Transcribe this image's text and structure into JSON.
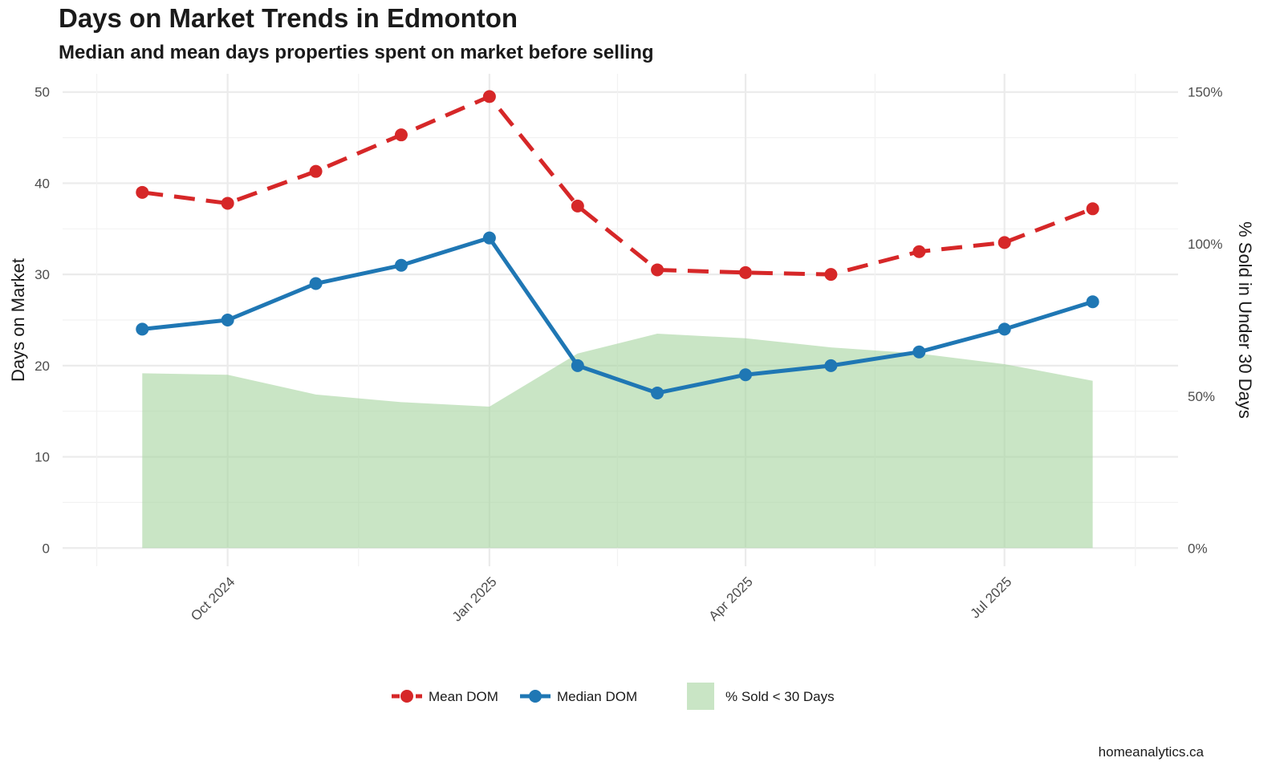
{
  "chart_data": {
    "type": "line",
    "title": "Days on Market Trends in Edmonton",
    "subtitle": "Median and mean days properties spent on market before selling",
    "caption": "homeanalytics.ca",
    "x": [
      "2024-09-01",
      "2024-10-01",
      "2024-11-01",
      "2024-12-01",
      "2025-01-01",
      "2025-02-01",
      "2025-03-01",
      "2025-04-01",
      "2025-05-01",
      "2025-06-01",
      "2025-07-01",
      "2025-08-01"
    ],
    "x_ticks": [
      {
        "date": "2024-10-01",
        "label": "Oct 2024"
      },
      {
        "date": "2025-01-01",
        "label": "Jan 2025"
      },
      {
        "date": "2025-04-01",
        "label": "Apr 2025"
      },
      {
        "date": "2025-07-01",
        "label": "Jul 2025"
      }
    ],
    "xlim": [
      "2024-08-04",
      "2025-08-31"
    ],
    "ylabel": "Days on Market",
    "ylim": [
      -2,
      52
    ],
    "y_ticks": [
      0,
      10,
      20,
      30,
      40,
      50
    ],
    "y2label": "% Sold in Under 30 Days",
    "y2lim": [
      -6,
      156
    ],
    "y2_ticks": [
      {
        "value": 0,
        "label": "0%"
      },
      {
        "value": 50,
        "label": "50%"
      },
      {
        "value": 100,
        "label": "100%"
      },
      {
        "value": 150,
        "label": "150%"
      }
    ],
    "grid": true,
    "legend_position": "bottom",
    "series": [
      {
        "name": "Mean DOM",
        "axis": "left",
        "style": "dashed-line-points",
        "color": "#d62728",
        "values": [
          39.0,
          37.8,
          41.3,
          45.3,
          49.5,
          37.5,
          30.5,
          30.2,
          30.0,
          32.5,
          33.5,
          37.2
        ]
      },
      {
        "name": "Median DOM",
        "axis": "left",
        "style": "line-points",
        "color": "#1f77b4",
        "values": [
          24,
          25,
          29,
          31,
          34,
          20,
          17,
          19,
          20,
          21.5,
          24,
          27
        ]
      },
      {
        "name": "% Sold < 30 Days",
        "axis": "right",
        "style": "area",
        "color": "#a8d5a2",
        "values": [
          57.5,
          57,
          50.5,
          48,
          46.5,
          64,
          70.5,
          69,
          66,
          64,
          60.5,
          55
        ]
      }
    ]
  }
}
